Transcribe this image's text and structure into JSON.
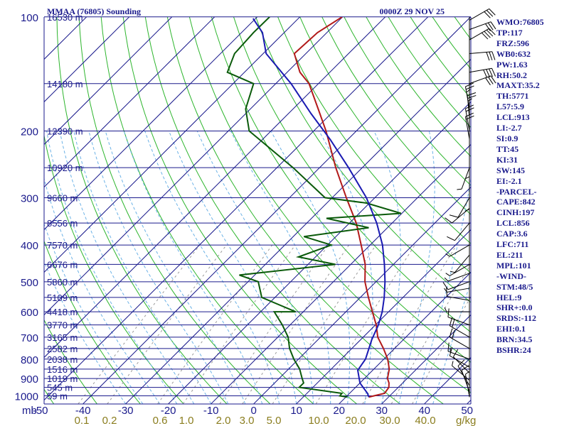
{
  "header": {
    "station": "MMAA (76805) Sounding",
    "time": "0000Z 29 NOV 25"
  },
  "colors": {
    "isobar": "#1a1a8c",
    "isotherm": "#1a1a8c",
    "dry_adiabat": "#2db52d",
    "moist_adiabat": "#6cb2e6",
    "mixing_ratio": "#9a9a9a",
    "temperature": "#b21a1a",
    "dewpoint": "#0a5a0a",
    "parcel": "#1a1ab2",
    "wind": "#000000",
    "text": "#1a1a8c",
    "mixlabel": "#8a7d1e"
  },
  "chart_data": {
    "type": "line",
    "title": "MMAA (76805) Sounding",
    "x_unit": "mb",
    "mixing_ratio_unit": "g/kg",
    "pressure_ticks": [
      100,
      200,
      300,
      400,
      500,
      600,
      700,
      800,
      900,
      1000
    ],
    "temperature_ticks": [
      -50,
      -40,
      -30,
      -20,
      -10,
      0,
      10,
      20,
      30,
      40,
      50
    ],
    "temperature_tick_labels": [
      "-50",
      "-40",
      "-30",
      "-20",
      "-10",
      "0",
      "10",
      "20",
      "30",
      "40",
      "50"
    ],
    "mixing_ratio_labels": [
      "0.1",
      "0.2",
      "0.6",
      "1.0",
      "2.0",
      "3.0",
      "5.0",
      "10.0",
      "20.0",
      "30.0",
      "40.0"
    ],
    "height_levels": [
      {
        "p": 100,
        "label": "16530 m"
      },
      {
        "p": 150,
        "label": "14180 m"
      },
      {
        "p": 200,
        "label": "12390 m"
      },
      {
        "p": 250,
        "label": "10920 m"
      },
      {
        "p": 300,
        "label": "9660 m"
      },
      {
        "p": 350,
        "label": "8556 m"
      },
      {
        "p": 400,
        "label": "7570 m"
      },
      {
        "p": 450,
        "label": "6676 m"
      },
      {
        "p": 500,
        "label": "5860 m"
      },
      {
        "p": 550,
        "label": "5109 m"
      },
      {
        "p": 600,
        "label": "4418 m"
      },
      {
        "p": 650,
        "label": "3770 m"
      },
      {
        "p": 700,
        "label": "3165 m"
      },
      {
        "p": 750,
        "label": "2582 m"
      },
      {
        "p": 800,
        "label": "2038 m"
      },
      {
        "p": 850,
        "label": "1516 m"
      },
      {
        "p": 900,
        "label": "1019 m"
      },
      {
        "p": 950,
        "label": "545 m"
      },
      {
        "p": 1000,
        "label": "59 m"
      }
    ],
    "series": [
      {
        "key": "temperature",
        "points": [
          [
            1008,
            25.4
          ],
          [
            1000,
            26.3
          ],
          [
            985,
            28.2
          ],
          [
            950,
            27.8
          ],
          [
            925,
            26.8
          ],
          [
            900,
            25.4
          ],
          [
            850,
            23.6
          ],
          [
            800,
            20.9
          ],
          [
            750,
            17.4
          ],
          [
            700,
            13.4
          ],
          [
            650,
            10.2
          ],
          [
            600,
            6.2
          ],
          [
            550,
            1.9
          ],
          [
            500,
            -2.6
          ],
          [
            450,
            -6.6
          ],
          [
            400,
            -12.1
          ],
          [
            350,
            -18.4
          ],
          [
            300,
            -26.7
          ],
          [
            250,
            -36.2
          ],
          [
            200,
            -47.1
          ],
          [
            175,
            -54.1
          ],
          [
            150,
            -62.2
          ],
          [
            140,
            -67.0
          ],
          [
            125,
            -72.7
          ],
          [
            110,
            -72.2
          ],
          [
            100,
            -70.1
          ]
        ]
      },
      {
        "key": "dewpoint",
        "points": [
          [
            1008,
            20.4
          ],
          [
            1000,
            18.3
          ],
          [
            985,
            18.2
          ],
          [
            950,
            6.8
          ],
          [
            925,
            6.8
          ],
          [
            900,
            5.4
          ],
          [
            850,
            2.6
          ],
          [
            800,
            -1.1
          ],
          [
            750,
            -4.6
          ],
          [
            700,
            -7.6
          ],
          [
            650,
            -11.8
          ],
          [
            600,
            -16.8
          ],
          [
            600,
            -11.8
          ],
          [
            550,
            -23.1
          ],
          [
            500,
            -27.6
          ],
          [
            480,
            -33.6
          ],
          [
            450,
            -13.6
          ],
          [
            430,
            -24.0
          ],
          [
            400,
            -19.1
          ],
          [
            380,
            -27.5
          ],
          [
            360,
            -14.4
          ],
          [
            340,
            -26.5
          ],
          [
            330,
            -10.2
          ],
          [
            310,
            -20.7
          ],
          [
            300,
            -31.7
          ],
          [
            250,
            -46.2
          ],
          [
            200,
            -65.1
          ],
          [
            175,
            -71.1
          ],
          [
            150,
            -75.2
          ],
          [
            140,
            -84.0
          ],
          [
            125,
            -86.7
          ],
          [
            110,
            -87.2
          ],
          [
            100,
            -87.1
          ]
        ]
      },
      {
        "key": "parcel",
        "points": [
          [
            1008,
            25.4
          ],
          [
            985,
            24.2
          ],
          [
            925,
            20.0
          ],
          [
            856,
            16.5
          ],
          [
            800,
            15.7
          ],
          [
            711,
            12.6
          ],
          [
            650,
            10.7
          ],
          [
            600,
            8.5
          ],
          [
            550,
            5.6
          ],
          [
            500,
            2.1
          ],
          [
            450,
            -2.1
          ],
          [
            400,
            -7.1
          ],
          [
            350,
            -13.6
          ],
          [
            300,
            -22.0
          ],
          [
            250,
            -33.2
          ],
          [
            211,
            -44.0
          ],
          [
            180,
            -54.7
          ],
          [
            150,
            -66.4
          ],
          [
            125,
            -79.3
          ],
          [
            110,
            -85.1
          ],
          [
            101,
            -90.6
          ]
        ]
      }
    ],
    "wind_barbs": [
      {
        "p": 1005,
        "dir": 350,
        "spd": 5
      },
      {
        "p": 975,
        "dir": 340,
        "spd": 10
      },
      {
        "p": 940,
        "dir": 330,
        "spd": 10
      },
      {
        "p": 910,
        "dir": 310,
        "spd": 5
      },
      {
        "p": 870,
        "dir": 315,
        "spd": 10
      },
      {
        "p": 840,
        "dir": 300,
        "spd": 10
      },
      {
        "p": 800,
        "dir": 290,
        "spd": 15
      },
      {
        "p": 750,
        "dir": 300,
        "spd": 20
      },
      {
        "p": 700,
        "dir": 300,
        "spd": 20
      },
      {
        "p": 650,
        "dir": 290,
        "spd": 10
      },
      {
        "p": 600,
        "dir": 270,
        "spd": 5
      },
      {
        "p": 560,
        "dir": 280,
        "spd": 10
      },
      {
        "p": 520,
        "dir": 260,
        "spd": 5
      },
      {
        "p": 500,
        "dir": 250,
        "spd": 10
      },
      {
        "p": 475,
        "dir": 250,
        "spd": 5
      },
      {
        "p": 450,
        "dir": 240,
        "spd": 5
      },
      {
        "p": 425,
        "dir": 220,
        "spd": 5
      },
      {
        "p": 400,
        "dir": 240,
        "spd": 5
      },
      {
        "p": 350,
        "dir": 220,
        "spd": 10
      },
      {
        "p": 320,
        "dir": 230,
        "spd": 10
      },
      {
        "p": 300,
        "dir": 210,
        "spd": 10
      },
      {
        "p": 280,
        "dir": 180,
        "spd": 5
      },
      {
        "p": 250,
        "dir": 200,
        "spd": 5
      },
      {
        "p": 230,
        "dir": 180,
        "spd": 5
      },
      {
        "p": 210,
        "dir": 350,
        "spd": 20
      },
      {
        "p": 200,
        "dir": 350,
        "spd": 20
      },
      {
        "p": 185,
        "dir": 355,
        "spd": 25
      },
      {
        "p": 175,
        "dir": 350,
        "spd": 25
      },
      {
        "p": 150,
        "dir": 70,
        "spd": 30
      },
      {
        "p": 140,
        "dir": 80,
        "spd": 40
      },
      {
        "p": 125,
        "dir": 85,
        "spd": 30
      },
      {
        "p": 115,
        "dir": 60,
        "spd": 40
      },
      {
        "p": 108,
        "dir": 70,
        "spd": 30
      },
      {
        "p": 102,
        "dir": 60,
        "spd": 30
      }
    ]
  },
  "indices": [
    "WMO:76805",
    "TP:117",
    "FRZ:596",
    "WB0:632",
    "PW:1.63",
    "RH:50.2",
    "MAXT:35.2",
    "TH:5771",
    "L57:5.9",
    "LCL:913",
    "LI:-2.7",
    "SI:0.9",
    "TT:45",
    "KI:31",
    "SW:145",
    "EI:-2.1",
    "-PARCEL-",
    "CAPE:842",
    "CINH:197",
    "LCL:856",
    "CAP:3.6",
    "LFC:711",
    "EL:211",
    "MPL:101",
    "-WIND-",
    "STM:48/5",
    "HEL:9",
    "SHR+:0.0",
    "SRDS:-112",
    "EHI:0.1",
    "BRN:34.5",
    "BSHR:24"
  ]
}
